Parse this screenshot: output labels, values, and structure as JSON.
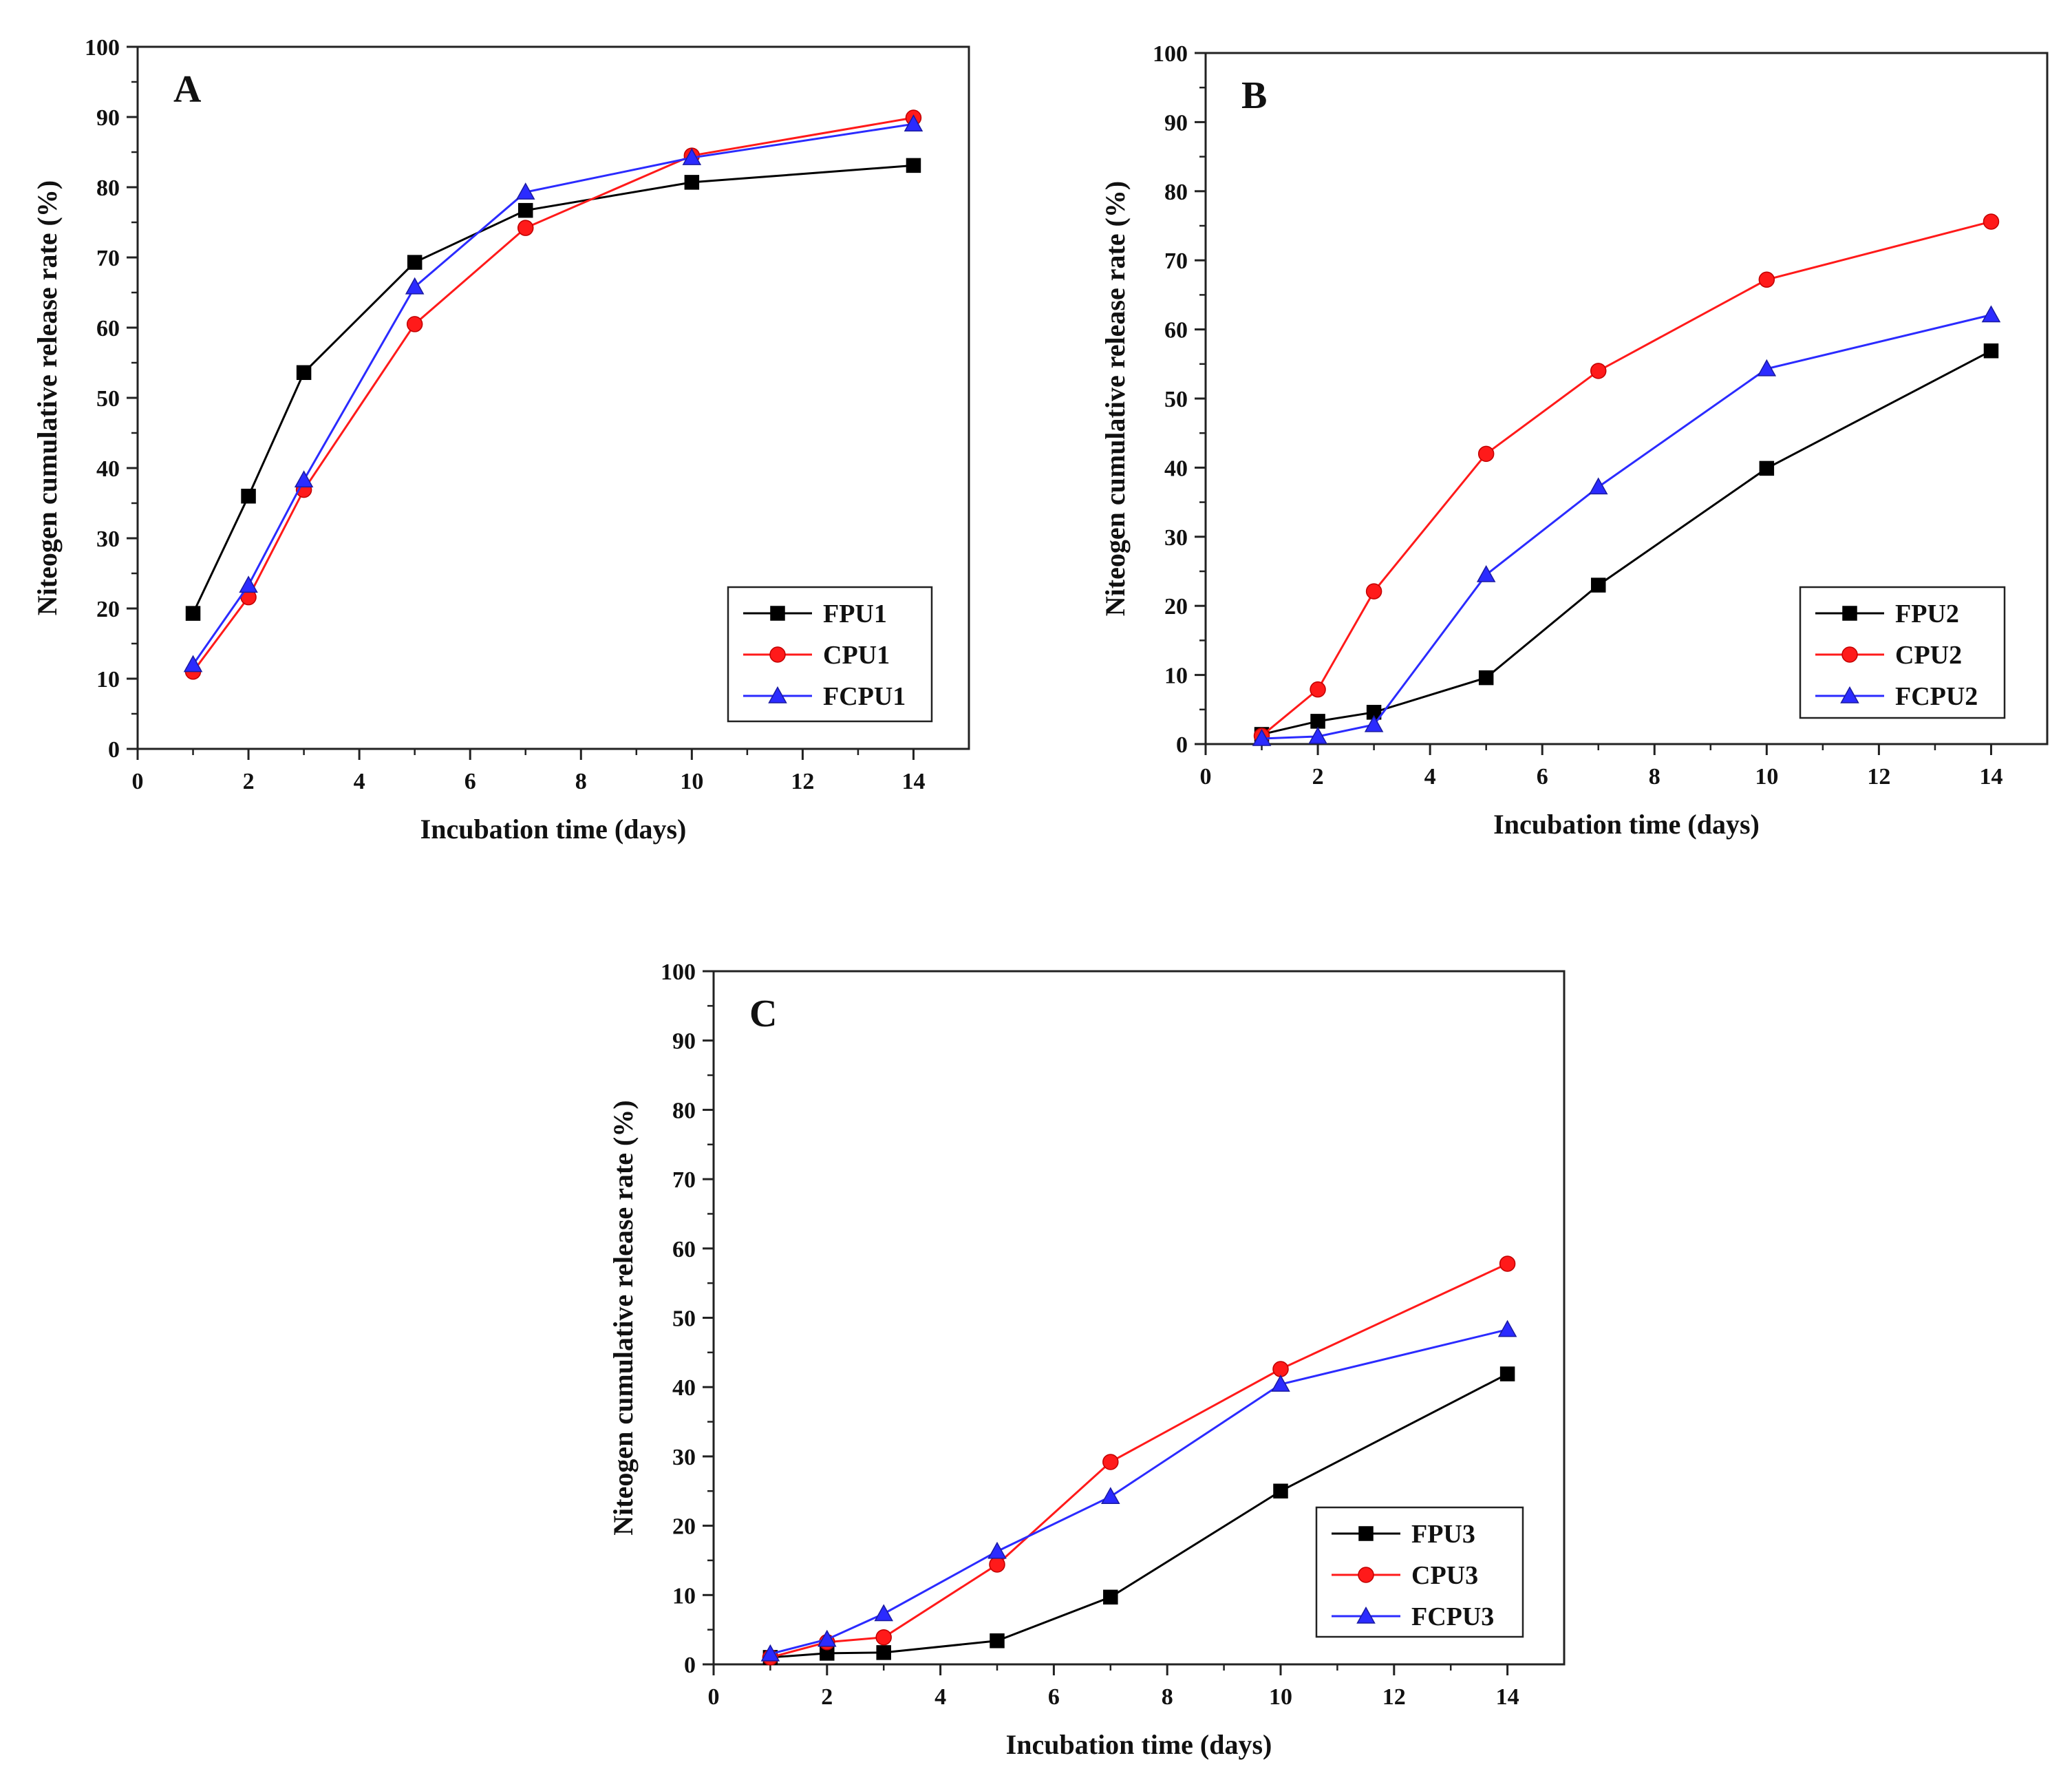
{
  "chart_data": [
    {
      "type": "line",
      "panel_label": "A",
      "xlabel": "Incubation time (days)",
      "ylabel": "Niteogen cumulative release rate (%)",
      "xlim": [
        0,
        15
      ],
      "ylim": [
        0,
        100
      ],
      "x_ticks": [
        "0",
        "2",
        "4",
        "6",
        "8",
        "10",
        "12",
        "14"
      ],
      "y_ticks": [
        "0",
        "10",
        "20",
        "30",
        "40",
        "50",
        "60",
        "70",
        "80",
        "90",
        "100"
      ],
      "legend_position": "bottom-right",
      "x": [
        1,
        2,
        3,
        5,
        7,
        10,
        14
      ],
      "series": [
        {
          "name": "FPU1",
          "color": "#000000",
          "marker": "square",
          "values": [
            19.3,
            36,
            53.6,
            69.3,
            76.7,
            80.7,
            83.1
          ]
        },
        {
          "name": "CPU1",
          "color": "#ff1a1a",
          "marker": "circle",
          "values": [
            11,
            21.6,
            36.9,
            60.5,
            74.2,
            84.5,
            89.9
          ]
        },
        {
          "name": "FCPU1",
          "color": "#2b2bff",
          "marker": "triangle",
          "values": [
            12,
            23.3,
            38.3,
            65.8,
            79.3,
            84.2,
            89
          ]
        }
      ]
    },
    {
      "type": "line",
      "panel_label": "B",
      "xlabel": "Incubation time (days)",
      "ylabel": "Niteogen cumulative release rate (%)",
      "xlim": [
        0,
        15
      ],
      "ylim": [
        0,
        100
      ],
      "x_ticks": [
        "0",
        "2",
        "4",
        "6",
        "8",
        "10",
        "12",
        "14"
      ],
      "y_ticks": [
        "0",
        "10",
        "20",
        "30",
        "40",
        "50",
        "60",
        "70",
        "80",
        "90",
        "100"
      ],
      "legend_position": "bottom-right",
      "x": [
        1,
        2,
        3,
        5,
        7,
        10,
        14
      ],
      "series": [
        {
          "name": "FPU2",
          "color": "#000000",
          "marker": "square",
          "values": [
            1.4,
            3.3,
            4.6,
            9.6,
            23,
            39.9,
            56.9
          ]
        },
        {
          "name": "CPU2",
          "color": "#ff1a1a",
          "marker": "circle",
          "values": [
            1.2,
            7.9,
            22.1,
            42,
            54,
            67.2,
            75.6
          ]
        },
        {
          "name": "FCPU2",
          "color": "#2b2bff",
          "marker": "triangle",
          "values": [
            0.8,
            1.1,
            2.8,
            24.5,
            37.2,
            54.3,
            62.1
          ]
        }
      ]
    },
    {
      "type": "line",
      "panel_label": "C",
      "xlabel": "Incubation time (days)",
      "ylabel": "Niteogen cumulative release rate (%)",
      "xlim": [
        0,
        15
      ],
      "ylim": [
        0,
        100
      ],
      "x_ticks": [
        "0",
        "2",
        "4",
        "6",
        "8",
        "10",
        "12",
        "14"
      ],
      "y_ticks": [
        "0",
        "10",
        "20",
        "30",
        "40",
        "50",
        "60",
        "70",
        "80",
        "90",
        "100"
      ],
      "legend_position": "bottom-right",
      "x": [
        1,
        2,
        3,
        5,
        7,
        10,
        14
      ],
      "series": [
        {
          "name": "FPU3",
          "color": "#000000",
          "marker": "square",
          "values": [
            1,
            1.6,
            1.7,
            3.4,
            9.7,
            25,
            41.9
          ]
        },
        {
          "name": "CPU3",
          "color": "#ff1a1a",
          "marker": "circle",
          "values": [
            1,
            3.2,
            3.9,
            14.4,
            29.2,
            42.6,
            57.8
          ]
        },
        {
          "name": "FCPU3",
          "color": "#2b2bff",
          "marker": "triangle",
          "values": [
            1.5,
            3.6,
            7.3,
            16.3,
            24.2,
            40.4,
            48.3
          ]
        }
      ]
    }
  ]
}
